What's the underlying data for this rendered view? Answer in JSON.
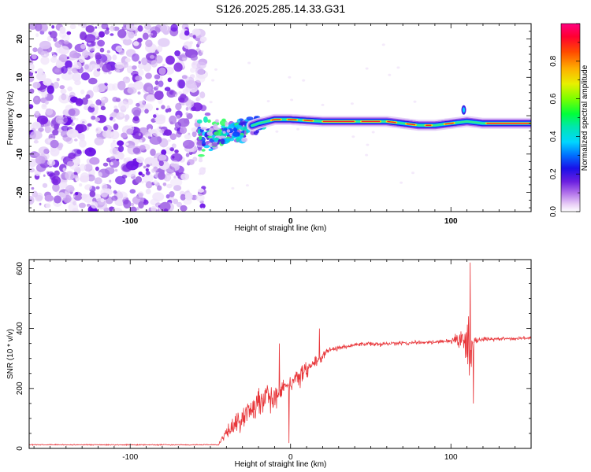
{
  "title": "S126.2025.285.14.33.G31",
  "chart_data": [
    {
      "type": "heatmap",
      "name": "spectrogram",
      "xlabel": "Height of straight line (km)",
      "ylabel": "Frequency (Hz)",
      "xlim": [
        -163,
        150
      ],
      "ylim": [
        -25,
        24
      ],
      "xticks": [
        -100,
        0,
        100
      ],
      "yticks": [
        20,
        10,
        0,
        -10,
        -20
      ],
      "noise_region_x": [
        -163,
        -57
      ],
      "ridge": [
        {
          "x": -57,
          "y": -5.5
        },
        {
          "x": -50,
          "y": -5
        },
        {
          "x": -40,
          "y": -4.5
        },
        {
          "x": -30,
          "y": -3.5
        },
        {
          "x": -20,
          "y": -2
        },
        {
          "x": -10,
          "y": -1
        },
        {
          "x": 0,
          "y": -1
        },
        {
          "x": 20,
          "y": -1.5
        },
        {
          "x": 40,
          "y": -1.5
        },
        {
          "x": 60,
          "y": -1.5
        },
        {
          "x": 70,
          "y": -2
        },
        {
          "x": 80,
          "y": -2.5
        },
        {
          "x": 90,
          "y": -2.5
        },
        {
          "x": 100,
          "y": -2
        },
        {
          "x": 110,
          "y": -1.5
        },
        {
          "x": 120,
          "y": -2
        },
        {
          "x": 150,
          "y": -2
        }
      ],
      "colorbar": {
        "label": "Normalized spectral amplitude",
        "range": [
          0,
          1
        ],
        "ticks": [
          {
            "value": 0.0,
            "label": "0.0"
          },
          {
            "value": 0.2,
            "label": "0.2"
          },
          {
            "value": 0.4,
            "label": "0.4"
          },
          {
            "value": 0.6,
            "label": "0.6"
          },
          {
            "value": 0.8,
            "label": "0.8"
          }
        ]
      }
    },
    {
      "type": "line",
      "name": "snr",
      "xlabel": "Height of straight line (km)",
      "ylabel": "SNR (10 * v/v)",
      "xlim": [
        -163,
        150
      ],
      "ylim": [
        0,
        630
      ],
      "xticks": [
        -100,
        0,
        100
      ],
      "yticks": [
        0,
        200,
        400,
        600
      ],
      "color": "#e8363a",
      "envelope": [
        {
          "x": -163,
          "mean": 12,
          "amp": 3
        },
        {
          "x": -45,
          "mean": 12,
          "amp": 3
        },
        {
          "x": -42,
          "mean": 40,
          "amp": 20
        },
        {
          "x": -35,
          "mean": 80,
          "amp": 60
        },
        {
          "x": -25,
          "mean": 130,
          "amp": 90
        },
        {
          "x": -10,
          "mean": 180,
          "amp": 80
        },
        {
          "x": 0,
          "mean": 220,
          "amp": 50
        },
        {
          "x": 10,
          "mean": 255,
          "amp": 60
        },
        {
          "x": 15,
          "mean": 290,
          "amp": 40
        },
        {
          "x": 25,
          "mean": 330,
          "amp": 15
        },
        {
          "x": 40,
          "mean": 345,
          "amp": 12
        },
        {
          "x": 60,
          "mean": 350,
          "amp": 12
        },
        {
          "x": 90,
          "mean": 355,
          "amp": 12
        },
        {
          "x": 100,
          "mean": 358,
          "amp": 14
        },
        {
          "x": 108,
          "mean": 360,
          "amp": 80
        },
        {
          "x": 112,
          "mean": 350,
          "amp": 230
        },
        {
          "x": 115,
          "mean": 362,
          "amp": 20
        },
        {
          "x": 130,
          "mean": 365,
          "amp": 10
        },
        {
          "x": 150,
          "mean": 368,
          "amp": 10
        }
      ],
      "peaks": [
        {
          "x": 112,
          "y": 620
        },
        {
          "x": 114,
          "y": 150
        },
        {
          "x": 18,
          "y": 400
        },
        {
          "x": -7,
          "y": 350
        },
        {
          "x": -1,
          "y": 18
        }
      ]
    }
  ]
}
